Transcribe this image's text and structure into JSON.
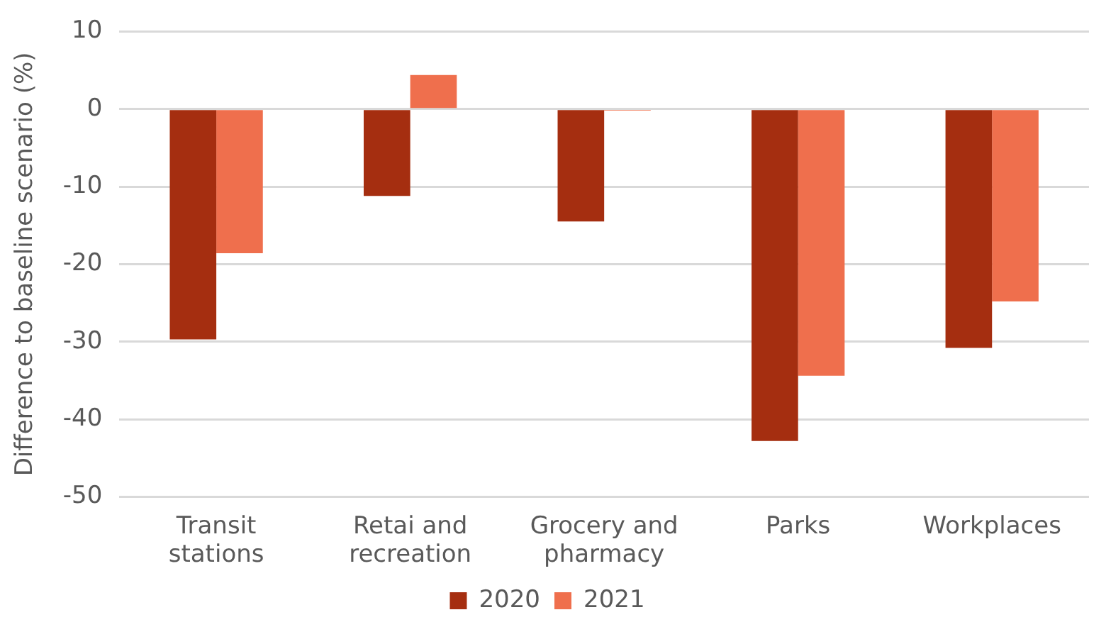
{
  "chart_data": {
    "type": "bar",
    "ylabel": "Difference to baseline scenario (%)",
    "categories": [
      "Transit stations",
      "Retai and recreation",
      "Grocery and pharmacy",
      "Parks",
      "Workplaces"
    ],
    "series": [
      {
        "name": "2020",
        "color": "#a52e10",
        "values": [
          -29.7,
          -11.2,
          -14.5,
          -42.8,
          -30.8
        ]
      },
      {
        "name": "2021",
        "color": "#ef6f4d",
        "values": [
          -18.6,
          4.4,
          -0.2,
          -34.4,
          -24.8
        ]
      }
    ],
    "ylim": [
      -50,
      10
    ],
    "yticks": [
      -50,
      -40,
      -30,
      -20,
      -10,
      0,
      10
    ],
    "grid": "y",
    "legend": "bottom"
  }
}
